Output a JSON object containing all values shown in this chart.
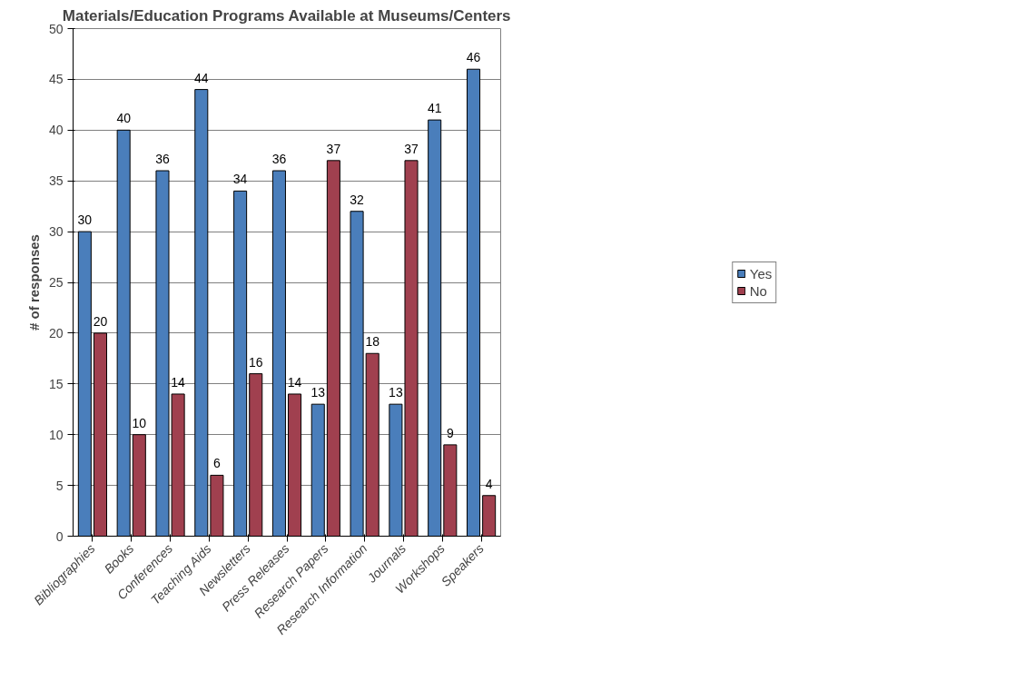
{
  "chart_data": {
    "type": "bar",
    "title": "Materials/Education Programs Available at Museums/Centers",
    "ylabel": "# of responses",
    "categories": [
      "Bibliographies",
      "Books",
      "Conferences",
      "Teaching Aids",
      "Newsletters",
      "Press Releases",
      "Research Papers",
      "Research Information",
      "Journals",
      "Workshops",
      "Speakers"
    ],
    "series": [
      {
        "name": "Yes",
        "color": "#4a7ebb",
        "values": [
          30,
          40,
          36,
          44,
          34,
          36,
          13,
          32,
          13,
          41,
          46
        ]
      },
      {
        "name": "No",
        "color": "#a0404f",
        "values": [
          20,
          10,
          14,
          6,
          16,
          14,
          37,
          18,
          37,
          9,
          4
        ]
      }
    ],
    "ylim": [
      0,
      50
    ],
    "yticks": [
      0,
      5,
      10,
      15,
      20,
      25,
      30,
      35,
      40,
      45,
      50
    ],
    "grid": "y",
    "legend": "right",
    "data_labels": true
  }
}
